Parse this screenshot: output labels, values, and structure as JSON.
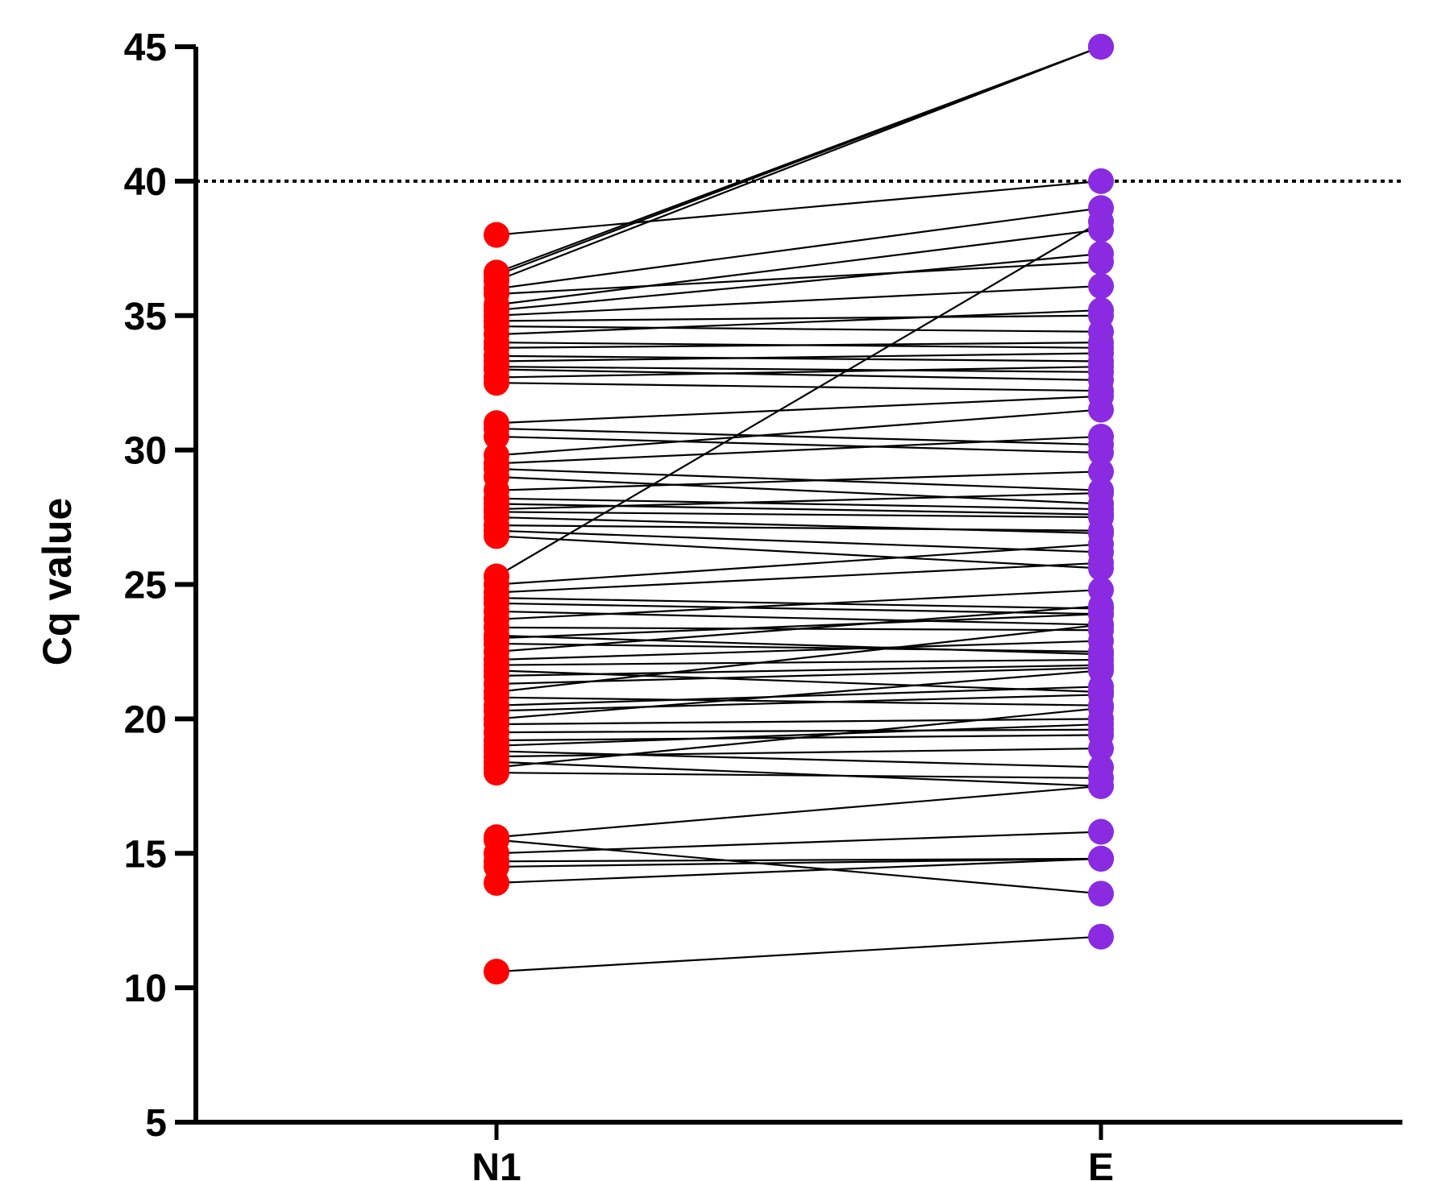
{
  "chart_data": {
    "type": "line",
    "ylabel": "Cq value",
    "xlabel": "",
    "categories": [
      "N1",
      "E"
    ],
    "yticks": [
      5,
      10,
      15,
      20,
      25,
      30,
      35,
      40,
      45
    ],
    "ylim": [
      5,
      45
    ],
    "threshold": 40,
    "grid": false,
    "colors": {
      "N1": "#ff0000",
      "E": "#8a2be2",
      "line": "#000000",
      "threshold": "#000000"
    },
    "pairs": [
      [
        38.0,
        40.0
      ],
      [
        36.6,
        45.0
      ],
      [
        36.5,
        45.0
      ],
      [
        36.3,
        45.0
      ],
      [
        36.0,
        39.0
      ],
      [
        35.8,
        37.0
      ],
      [
        35.4,
        38.2
      ],
      [
        35.2,
        37.3
      ],
      [
        35.0,
        36.1
      ],
      [
        34.8,
        35.0
      ],
      [
        34.6,
        34.4
      ],
      [
        34.3,
        35.2
      ],
      [
        34.0,
        33.8
      ],
      [
        33.8,
        34.0
      ],
      [
        33.5,
        33.3
      ],
      [
        33.3,
        33.6
      ],
      [
        33.1,
        32.9
      ],
      [
        33.0,
        32.6
      ],
      [
        32.7,
        33.1
      ],
      [
        32.5,
        32.2
      ],
      [
        31.0,
        32.0
      ],
      [
        30.8,
        30.2
      ],
      [
        30.5,
        29.9
      ],
      [
        29.8,
        31.5
      ],
      [
        29.5,
        30.5
      ],
      [
        29.3,
        28.5
      ],
      [
        29.0,
        28.0
      ],
      [
        28.5,
        29.2
      ],
      [
        28.2,
        27.8
      ],
      [
        28.0,
        27.6
      ],
      [
        27.8,
        28.4
      ],
      [
        27.7,
        27.5
      ],
      [
        27.5,
        26.9
      ],
      [
        27.2,
        27.0
      ],
      [
        27.0,
        26.2
      ],
      [
        26.8,
        25.6
      ],
      [
        25.3,
        38.5
      ],
      [
        25.0,
        26.5
      ],
      [
        24.7,
        25.8
      ],
      [
        24.5,
        24.1
      ],
      [
        24.3,
        23.9
      ],
      [
        24.0,
        23.5
      ],
      [
        23.7,
        24.8
      ],
      [
        23.4,
        23.3
      ],
      [
        23.1,
        22.4
      ],
      [
        23.0,
        23.9
      ],
      [
        22.8,
        22.5
      ],
      [
        22.5,
        24.2
      ],
      [
        22.2,
        22.9
      ],
      [
        22.0,
        22.2
      ],
      [
        21.8,
        21.0
      ],
      [
        21.6,
        22.0
      ],
      [
        21.3,
        21.9
      ],
      [
        21.0,
        23.5
      ],
      [
        20.8,
        20.5
      ],
      [
        20.5,
        21.2
      ],
      [
        20.3,
        20.9
      ],
      [
        20.0,
        21.8
      ],
      [
        19.8,
        20.0
      ],
      [
        19.5,
        19.6
      ],
      [
        19.2,
        19.4
      ],
      [
        19.0,
        19.8
      ],
      [
        18.8,
        18.2
      ],
      [
        18.6,
        18.9
      ],
      [
        18.4,
        17.5
      ],
      [
        18.2,
        20.4
      ],
      [
        18.0,
        17.8
      ],
      [
        15.6,
        17.5
      ],
      [
        15.5,
        13.5
      ],
      [
        15.0,
        15.8
      ],
      [
        14.7,
        14.8
      ],
      [
        14.5,
        14.8
      ],
      [
        13.9,
        14.8
      ],
      [
        10.6,
        11.9
      ]
    ]
  }
}
